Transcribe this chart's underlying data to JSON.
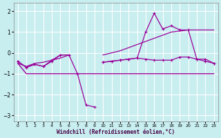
{
  "xlabel": "Windchill (Refroidissement éolien,°C)",
  "background_color": "#c8eef0",
  "grid_color": "#ffffff",
  "line_color": "#990099",
  "x_ticks": [
    0,
    1,
    2,
    3,
    4,
    5,
    6,
    7,
    8,
    9,
    10,
    11,
    12,
    13,
    14,
    15,
    16,
    17,
    18,
    19,
    20,
    21,
    22,
    23
  ],
  "y_ticks": [
    -3,
    -2,
    -1,
    0,
    1,
    2
  ],
  "xlim": [
    -0.5,
    23.5
  ],
  "ylim": [
    -3.3,
    2.4
  ],
  "series": [
    {
      "x": [
        0,
        1,
        2,
        3,
        4,
        5,
        6,
        7,
        8,
        9,
        10,
        11,
        12,
        13,
        14,
        15,
        16,
        17,
        18,
        19,
        20,
        21,
        22,
        23
      ],
      "y": [
        -0.5,
        -1.0,
        -1.0,
        -1.0,
        -1.0,
        -1.0,
        -1.0,
        -1.0,
        -1.0,
        -1.0,
        -1.0,
        -1.0,
        -1.0,
        -1.0,
        -1.0,
        -1.0,
        -1.0,
        -1.0,
        -1.0,
        -1.0,
        -1.0,
        -1.0,
        -1.0,
        -1.0
      ],
      "marker": false,
      "lw": 1.0
    },
    {
      "x": [
        0,
        1,
        2,
        3,
        4,
        5,
        6,
        7,
        8,
        9,
        10,
        11,
        12,
        13,
        14,
        15,
        16,
        17,
        18,
        19,
        20,
        21,
        22,
        23
      ],
      "y": [
        -0.5,
        -0.65,
        -0.5,
        -0.45,
        -0.35,
        -0.25,
        -0.1,
        null,
        null,
        null,
        -0.1,
        0.0,
        0.1,
        0.25,
        0.4,
        0.55,
        0.7,
        0.85,
        1.0,
        1.05,
        1.1,
        1.1,
        1.1,
        1.1
      ],
      "marker": false,
      "lw": 0.9
    },
    {
      "x": [
        0,
        1,
        2,
        3,
        4,
        5,
        6,
        7,
        8,
        9,
        10,
        11,
        12,
        13,
        14,
        15,
        16,
        17,
        18,
        19,
        20,
        21,
        22,
        23
      ],
      "y": [
        -0.4,
        -0.7,
        -0.55,
        -0.65,
        -0.4,
        -0.1,
        -0.1,
        -1.0,
        -2.5,
        -2.6,
        null,
        null,
        null,
        null,
        null,
        null,
        null,
        null,
        null,
        null,
        null,
        null,
        null,
        null
      ],
      "marker": true,
      "lw": 0.9
    },
    {
      "x": [
        0,
        1,
        2,
        3,
        4,
        5,
        6,
        7,
        8,
        9,
        10,
        11,
        12,
        13,
        14,
        15,
        16,
        17,
        18,
        19,
        20,
        21,
        22,
        23
      ],
      "y": [
        null,
        null,
        null,
        null,
        null,
        null,
        null,
        null,
        null,
        null,
        -0.45,
        -0.4,
        -0.35,
        -0.3,
        -0.25,
        1.0,
        1.9,
        1.15,
        1.3,
        1.1,
        1.1,
        -0.3,
        -0.3,
        -0.5
      ],
      "marker": true,
      "lw": 0.9
    },
    {
      "x": [
        0,
        1,
        2,
        3,
        4,
        5,
        6,
        7,
        8,
        9,
        10,
        11,
        12,
        13,
        14,
        15,
        16,
        17,
        18,
        19,
        20,
        21,
        22,
        23
      ],
      "y": [
        -0.4,
        -0.7,
        -0.55,
        -0.65,
        -0.35,
        -0.1,
        -0.1,
        null,
        null,
        null,
        -0.45,
        -0.4,
        -0.35,
        -0.3,
        -0.25,
        -0.3,
        -0.35,
        -0.35,
        -0.35,
        -0.2,
        -0.2,
        -0.3,
        -0.4,
        -0.5
      ],
      "marker": true,
      "lw": 0.9
    }
  ]
}
